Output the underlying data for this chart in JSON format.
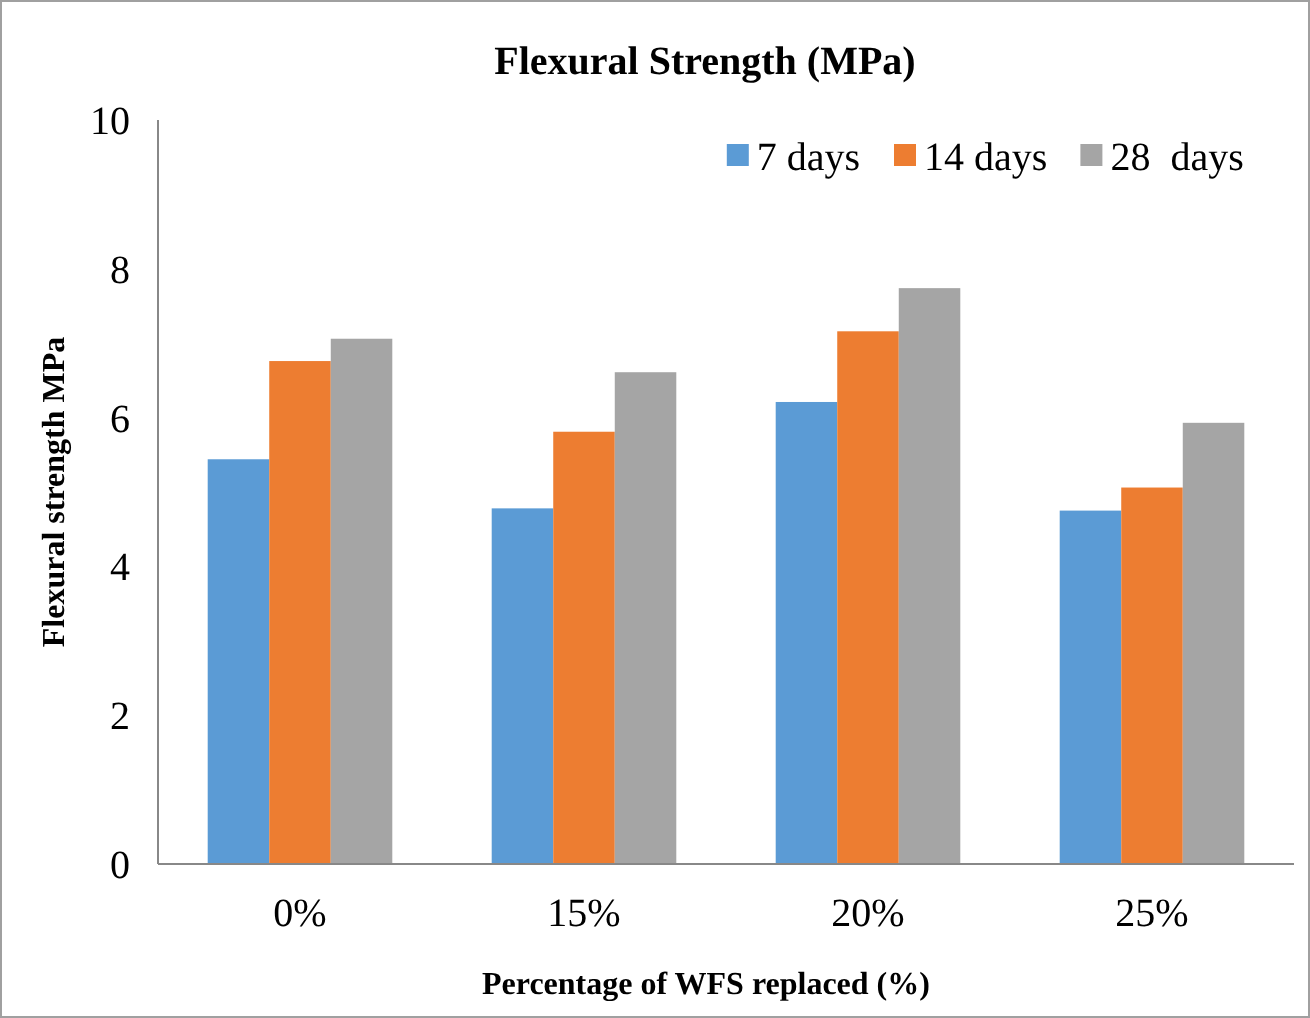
{
  "chart_data": {
    "type": "bar",
    "title": "Flexural Strength (MPa)",
    "xlabel": "Percentage of WFS replaced (%)",
    "ylabel": "Flexural strength MPa",
    "categories": [
      "0%",
      "15%",
      "20%",
      "25%"
    ],
    "series": [
      {
        "name": "7 days",
        "color": "#5b9bd5",
        "values": [
          5.44,
          4.78,
          6.21,
          4.75
        ]
      },
      {
        "name": "14 days",
        "color": "#ed7d31",
        "values": [
          6.76,
          5.81,
          7.16,
          5.06
        ]
      },
      {
        "name": "28  days",
        "color": "#a5a5a5",
        "values": [
          7.06,
          6.61,
          7.74,
          5.93
        ]
      }
    ],
    "ylim": [
      0,
      10
    ],
    "yticks": [
      0,
      2,
      4,
      6,
      8,
      10
    ],
    "grid": false,
    "legend": "top right"
  }
}
